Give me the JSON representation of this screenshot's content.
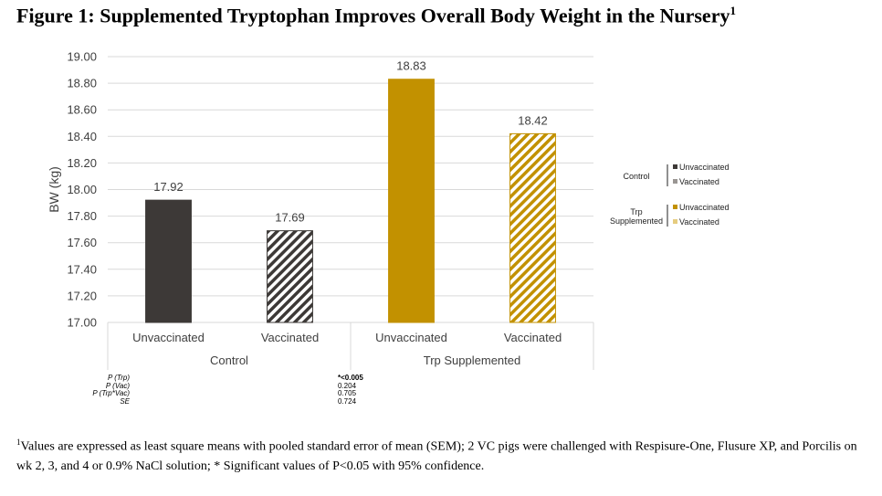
{
  "figure": {
    "title": "Figure 1: Supplemented Tryptophan Improves Overall Body Weight in the Nursery",
    "title_sup": "1",
    "footnote_sup": "1",
    "footnote": "Values are expressed as least square means with pooled standard error of mean (SEM); 2 VC pigs were challenged with Respisure-One, Flusure XP, and Porcilis on wk 2, 3, and 4 or 0.9% NaCl solution; * Significant values of P<0.05 with 95% confidence."
  },
  "stats": {
    "labels": [
      "P (Trp)",
      "P (Vac)",
      "P (Trp*Vac)",
      "SE"
    ],
    "values": [
      "*<0.005",
      "0.204",
      "0.705",
      "0.724"
    ]
  },
  "legend": {
    "groups": [
      {
        "label": "Control",
        "entries": [
          {
            "label": "Unvaccinated",
            "color": "#3d3937",
            "pattern": "solid"
          },
          {
            "label": "Vaccinated",
            "color": "#3d3937",
            "pattern": "hatch"
          }
        ]
      },
      {
        "label": "Trp Supplemented",
        "entries": [
          {
            "label": "Unvaccinated",
            "color": "#c29100",
            "pattern": "solid"
          },
          {
            "label": "Vaccinated",
            "color": "#c29100",
            "pattern": "hatch"
          }
        ]
      }
    ]
  },
  "chart_data": {
    "type": "bar",
    "title": "",
    "xlabel": "",
    "ylabel": "BW (kg)",
    "ylim": [
      17.0,
      19.0
    ],
    "yticks": [
      "17.00",
      "17.20",
      "17.40",
      "17.60",
      "17.80",
      "18.00",
      "18.20",
      "18.40",
      "18.60",
      "18.80",
      "19.00"
    ],
    "grid": true,
    "groups": [
      "Control",
      "Trp Supplemented"
    ],
    "categories": [
      "Unvaccinated",
      "Vaccinated",
      "Unvaccinated",
      "Vaccinated"
    ],
    "bars": [
      {
        "group": "Control",
        "category": "Unvaccinated",
        "value": 17.92,
        "label": "17.92",
        "color": "#3d3937",
        "pattern": "solid"
      },
      {
        "group": "Control",
        "category": "Vaccinated",
        "value": 17.69,
        "label": "17.69",
        "color": "#3d3937",
        "pattern": "hatch"
      },
      {
        "group": "Trp Supplemented",
        "category": "Unvaccinated",
        "value": 18.83,
        "label": "18.83",
        "color": "#c29100",
        "pattern": "solid"
      },
      {
        "group": "Trp Supplemented",
        "category": "Vaccinated",
        "value": 18.42,
        "label": "18.42",
        "color": "#c29100",
        "pattern": "hatch"
      }
    ]
  }
}
